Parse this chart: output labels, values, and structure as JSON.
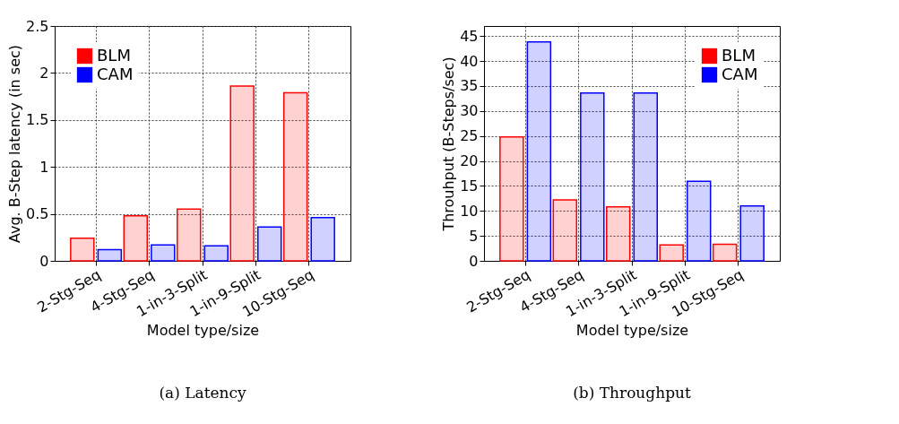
{
  "chart_data": [
    {
      "type": "bar",
      "title": "(a) Latency",
      "xlabel": "Model type/size",
      "ylabel": "Avg. B-Step latency (in sec)",
      "categories": [
        "2-Stg-Seq",
        "4-Stg-Seq",
        "1-in-3-Split",
        "1-in-9-Split",
        "10-Stg-Seq"
      ],
      "series": [
        {
          "name": "BLM",
          "color": "#ff0000",
          "values": [
            0.24,
            0.48,
            0.55,
            1.86,
            1.79
          ]
        },
        {
          "name": "CAM",
          "color": "#0000ff",
          "values": [
            0.12,
            0.17,
            0.16,
            0.36,
            0.46
          ]
        }
      ],
      "ylim": [
        0,
        2.5
      ],
      "yticks": [
        0,
        0.5,
        1,
        1.5,
        2,
        2.5
      ],
      "grid": true,
      "legend": "top left"
    },
    {
      "type": "bar",
      "title": "(b) Throughput",
      "xlabel": "Model type/size",
      "ylabel": "Throuhput (B-Steps/sec)",
      "categories": [
        "2-Stg-Seq",
        "4-Stg-Seq",
        "1-in-3-Split",
        "1-in-9-Split",
        "10-Stg-Seq"
      ],
      "series": [
        {
          "name": "BLM",
          "color": "#ff0000",
          "values": [
            24.8,
            12.2,
            10.8,
            3.2,
            3.3
          ]
        },
        {
          "name": "CAM",
          "color": "#0000ff",
          "values": [
            43.8,
            33.6,
            33.6,
            15.9,
            11.0
          ]
        }
      ],
      "ylim": [
        0,
        47
      ],
      "yticks": [
        0,
        5,
        10,
        15,
        20,
        25,
        30,
        35,
        40,
        45
      ],
      "grid": true,
      "legend": "top right"
    }
  ]
}
